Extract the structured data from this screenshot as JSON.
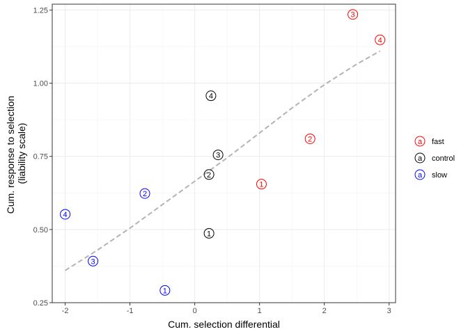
{
  "chart_data": {
    "type": "scatter",
    "xlabel": "Cum. selection differential",
    "ylabel": [
      "Cum. response to selection",
      "(liability scale)"
    ],
    "xlim": [
      -2.2,
      3.1
    ],
    "ylim": [
      0.25,
      1.27
    ],
    "x_ticks": [
      -2,
      -1,
      0,
      1,
      2,
      3
    ],
    "y_ticks": [
      0.25,
      0.5,
      0.75,
      1.0,
      1.25
    ],
    "x_tick_labels": [
      "-2",
      "-1",
      "0",
      "1",
      "2",
      "3"
    ],
    "y_tick_labels": [
      "0.25",
      "0.50",
      "0.75",
      "1.00",
      "1.25"
    ],
    "grid": true,
    "legend_position": "right",
    "legend_glyph": "a",
    "series": [
      {
        "name": "fast",
        "color": "#ff0000",
        "points": [
          {
            "x": 1.03,
            "y": 0.655,
            "label": "1"
          },
          {
            "x": 1.78,
            "y": 0.81,
            "label": "2"
          },
          {
            "x": 2.44,
            "y": 1.235,
            "label": "3"
          },
          {
            "x": 2.86,
            "y": 1.148,
            "label": "4"
          }
        ]
      },
      {
        "name": "control",
        "color": "#000000",
        "points": [
          {
            "x": 0.22,
            "y": 0.487,
            "label": "1"
          },
          {
            "x": 0.22,
            "y": 0.688,
            "label": "2"
          },
          {
            "x": 0.36,
            "y": 0.755,
            "label": "3"
          },
          {
            "x": 0.25,
            "y": 0.957,
            "label": "4"
          }
        ]
      },
      {
        "name": "slow",
        "color": "#0000ff",
        "points": [
          {
            "x": -0.46,
            "y": 0.292,
            "label": "1"
          },
          {
            "x": -0.77,
            "y": 0.623,
            "label": "2"
          },
          {
            "x": -1.57,
            "y": 0.392,
            "label": "3"
          },
          {
            "x": -2.0,
            "y": 0.552,
            "label": "4"
          }
        ]
      }
    ],
    "trend_line": {
      "style": "dashed",
      "color": "#b3b3b3",
      "points": [
        {
          "x": -2.0,
          "y": 0.36
        },
        {
          "x": -1.5,
          "y": 0.43
        },
        {
          "x": -1.0,
          "y": 0.505
        },
        {
          "x": -0.5,
          "y": 0.585
        },
        {
          "x": 0.0,
          "y": 0.665
        },
        {
          "x": 0.5,
          "y": 0.745
        },
        {
          "x": 1.0,
          "y": 0.83
        },
        {
          "x": 1.5,
          "y": 0.915
        },
        {
          "x": 2.0,
          "y": 0.995
        },
        {
          "x": 2.5,
          "y": 1.065
        },
        {
          "x": 2.86,
          "y": 1.11
        }
      ]
    }
  }
}
